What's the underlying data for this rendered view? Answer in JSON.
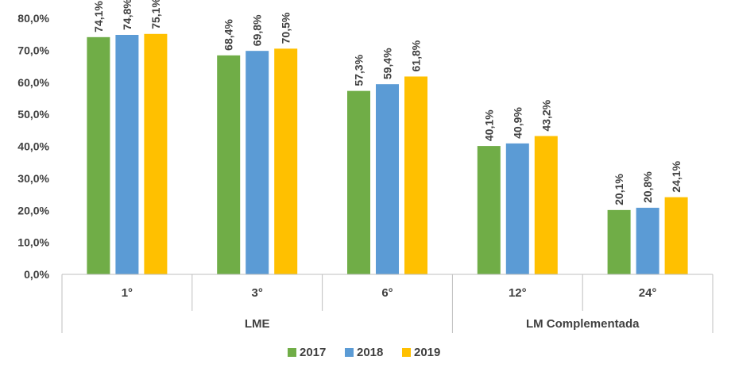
{
  "chart_data": {
    "type": "bar",
    "title": "",
    "xlabel": "",
    "ylabel": "",
    "ylim": [
      0,
      80
    ],
    "y_ticks": [
      "0,0%",
      "10,0%",
      "20,0%",
      "30,0%",
      "40,0%",
      "50,0%",
      "60,0%",
      "70,0%",
      "80,0%"
    ],
    "grid": false,
    "legend_position": "bottom",
    "categories": [
      "1°",
      "3°",
      "6°",
      "12°",
      "24°"
    ],
    "groups": [
      {
        "label": "LME",
        "categories": [
          "1°",
          "3°",
          "6°"
        ]
      },
      {
        "label": "LM Complementada",
        "categories": [
          "12°",
          "24°"
        ]
      }
    ],
    "series": [
      {
        "name": "2017",
        "color": "#70AD47",
        "values": [
          74.1,
          68.4,
          57.3,
          40.1,
          20.1
        ],
        "labels": [
          "74,1%",
          "68,4%",
          "57,3%",
          "40,1%",
          "20,1%"
        ]
      },
      {
        "name": "2018",
        "color": "#5B9BD5",
        "values": [
          74.8,
          69.8,
          59.4,
          40.9,
          20.8
        ],
        "labels": [
          "74,8%",
          "69,8%",
          "59,4%",
          "40,9%",
          "20,8%"
        ]
      },
      {
        "name": "2019",
        "color": "#FFC000",
        "values": [
          75.1,
          70.5,
          61.8,
          43.2,
          24.1
        ],
        "labels": [
          "75,1%",
          "70,5%",
          "61,8%",
          "43,2%",
          "24,1%"
        ]
      }
    ]
  }
}
